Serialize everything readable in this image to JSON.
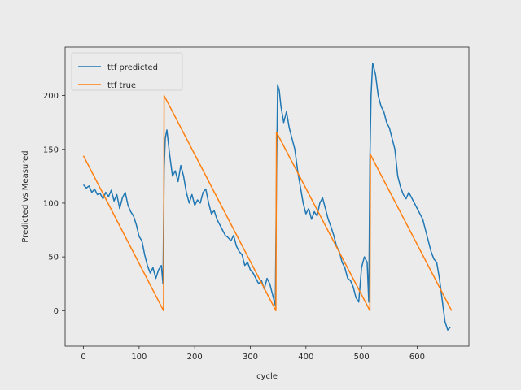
{
  "chart_data": {
    "type": "line",
    "title": "",
    "xlabel": "cycle",
    "ylabel": "Predicted vs Measured",
    "xlim": [
      -33,
      693
    ],
    "ylim": [
      -33,
      245
    ],
    "xticks": [
      0,
      100,
      200,
      300,
      400,
      500,
      600
    ],
    "yticks": [
      0,
      50,
      100,
      150,
      200
    ],
    "grid": false,
    "legend_position": "top-left",
    "background": "#ebebeb",
    "series": [
      {
        "name": "ttf predicted",
        "color": "#1f77b4",
        "x": [
          0,
          5,
          10,
          15,
          20,
          25,
          30,
          35,
          40,
          45,
          50,
          55,
          60,
          65,
          70,
          75,
          80,
          85,
          90,
          95,
          100,
          105,
          110,
          115,
          120,
          125,
          130,
          135,
          140,
          143,
          145,
          147,
          150,
          155,
          160,
          165,
          170,
          175,
          180,
          185,
          190,
          195,
          200,
          205,
          210,
          215,
          220,
          225,
          230,
          235,
          240,
          245,
          250,
          255,
          260,
          265,
          270,
          275,
          280,
          285,
          290,
          295,
          300,
          305,
          310,
          315,
          320,
          325,
          330,
          335,
          340,
          345,
          347,
          349,
          352,
          355,
          360,
          365,
          370,
          375,
          380,
          385,
          390,
          395,
          400,
          405,
          410,
          415,
          420,
          425,
          430,
          435,
          440,
          445,
          450,
          455,
          460,
          465,
          470,
          475,
          480,
          485,
          490,
          495,
          500,
          505,
          510,
          513,
          515,
          517,
          520,
          525,
          530,
          535,
          540,
          545,
          550,
          555,
          560,
          565,
          570,
          575,
          580,
          585,
          590,
          595,
          600,
          605,
          610,
          615,
          620,
          625,
          630,
          635,
          640,
          645,
          650,
          655,
          660
        ],
        "y": [
          117,
          114,
          116,
          110,
          113,
          108,
          109,
          104,
          110,
          106,
          112,
          102,
          108,
          95,
          105,
          110,
          98,
          92,
          88,
          80,
          69,
          65,
          52,
          42,
          35,
          40,
          30,
          38,
          42,
          25,
          130,
          160,
          168,
          145,
          125,
          130,
          120,
          135,
          125,
          110,
          100,
          108,
          98,
          103,
          100,
          110,
          113,
          100,
          90,
          93,
          85,
          80,
          75,
          70,
          68,
          65,
          70,
          60,
          55,
          52,
          42,
          45,
          38,
          35,
          30,
          25,
          28,
          20,
          30,
          25,
          15,
          5,
          120,
          210,
          205,
          190,
          175,
          185,
          170,
          160,
          150,
          130,
          115,
          100,
          90,
          95,
          85,
          92,
          88,
          100,
          105,
          95,
          85,
          78,
          70,
          60,
          55,
          45,
          40,
          30,
          28,
          22,
          12,
          8,
          40,
          50,
          45,
          8,
          140,
          200,
          230,
          220,
          200,
          190,
          185,
          175,
          170,
          160,
          150,
          125,
          115,
          108,
          104,
          110,
          105,
          100,
          95,
          90,
          85,
          75,
          65,
          55,
          48,
          45,
          30,
          10,
          -10,
          -18,
          -15
        ]
      },
      {
        "name": "ttf true",
        "color": "#ff7f0e",
        "x": [
          0,
          144,
          144.5,
          145,
          346,
          346.5,
          347,
          515,
          515.5,
          516,
          662
        ],
        "y": [
          144,
          0,
          100,
          200,
          0,
          83,
          166,
          0,
          73,
          145,
          0
        ]
      }
    ]
  }
}
